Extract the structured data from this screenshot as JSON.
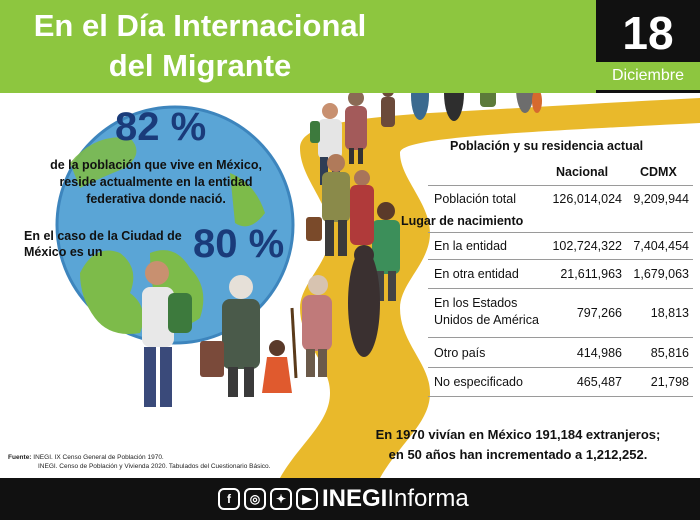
{
  "header": {
    "title_line1": "En el Día Internacional",
    "title_line2": "del Migrante",
    "day": "18",
    "month": "Diciembre"
  },
  "stats": {
    "pct_state": "82 %",
    "paragraph": "de la población que vive en México, reside actualmente en la entidad federativa donde nació.",
    "cdmx_text": "En el caso de la Ciudad de México es un",
    "pct_cdmx": "80 %"
  },
  "table": {
    "title": "Población y su residencia actual",
    "col_nacional": "Nacional",
    "col_cdmx": "CDMX",
    "total": {
      "label": "Población total",
      "nacional": "126,014,024",
      "cdmx": "9,209,944"
    },
    "section_label": "Lugar de nacimiento",
    "rows": [
      {
        "label": "En la entidad",
        "nacional": "102,724,322",
        "cdmx": "7,404,454"
      },
      {
        "label": "En otra entidad",
        "nacional": "21,611,963",
        "cdmx": "1,679,063"
      },
      {
        "label_line1": "En los Estados",
        "label_line2": "Unidos de América",
        "nacional": "797,266",
        "cdmx": "18,813"
      },
      {
        "label": "Otro país",
        "nacional": "414,986",
        "cdmx": "85,816"
      },
      {
        "label": "No especificado",
        "nacional": "465,487",
        "cdmx": "21,798"
      }
    ]
  },
  "footnote": {
    "line1": "En 1970 vivían en México 191,184 extranjeros;",
    "line2": "en 50 años han incrementado a 1,212,252."
  },
  "source": {
    "label": "Fuente:",
    "line1": "INEGI. IX Censo General de Población 1970.",
    "line2": "INEGI. Censo de Población y Vivienda 2020. Tabulados del Cuestionario Básico."
  },
  "footer": {
    "brand": "INEGI",
    "brand_suffix": "Informa",
    "icons": [
      "facebook-icon",
      "instagram-icon",
      "twitter-icon",
      "youtube-icon"
    ]
  },
  "colors": {
    "green": "#8dc63f",
    "navy": "#1a3b7a",
    "yellow_road": "#e9b92b",
    "black": "#111111"
  }
}
